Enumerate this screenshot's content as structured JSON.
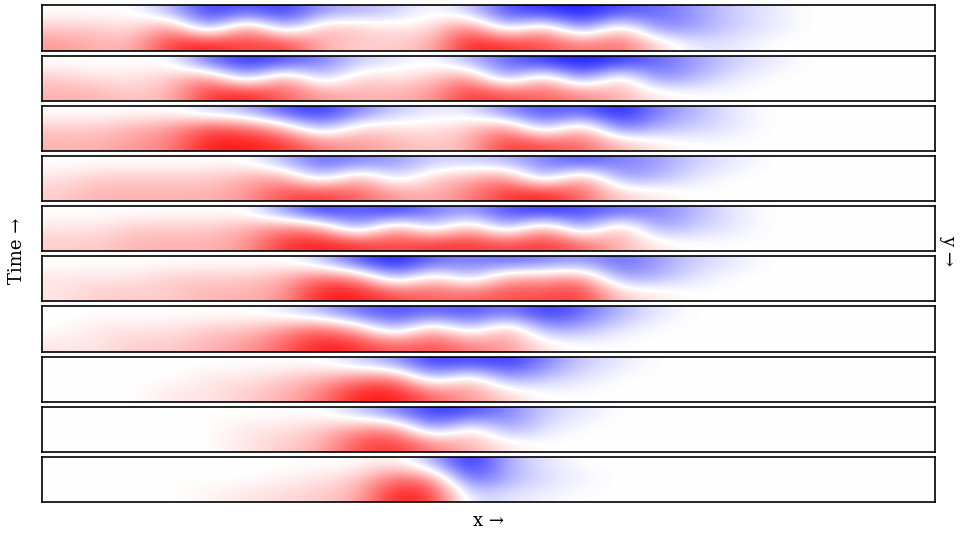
{
  "chart_data": {
    "type": "heatmap",
    "ylabel": "Time →",
    "xlabel": "x →",
    "y2label": "y →",
    "tick_labels": false,
    "value_range": [
      -1,
      1
    ],
    "panels": [
      {
        "cells": [
          [
            0,
            0,
            0,
            -0.3,
            -0.8,
            -0.6,
            -0.8,
            -0.4,
            -0.3,
            -0.2,
            0,
            -0.2,
            -0.7,
            -0.8,
            -0.9,
            -0.7,
            -0.6,
            -0.4,
            -0.2,
            -0.1,
            0,
            0,
            0,
            0
          ],
          [
            0.2,
            0.2,
            0.1,
            0.5,
            -0.5,
            0.6,
            -0.4,
            0.3,
            0.2,
            0.1,
            0.1,
            0.6,
            -0.3,
            0.4,
            -0.6,
            0.3,
            -0.5,
            -0.4,
            -0.2,
            -0.1,
            0,
            0,
            0,
            0
          ],
          [
            0.4,
            0.3,
            0.3,
            0.8,
            0.9,
            0.7,
            0.8,
            0.3,
            0.2,
            0.2,
            0.3,
            0.9,
            0.8,
            0.7,
            0.5,
            0.6,
            0.2,
            -0.1,
            -0.1,
            0,
            0,
            0,
            0,
            0
          ]
        ]
      },
      {
        "cells": [
          [
            0,
            0,
            0,
            0,
            -0.6,
            -0.8,
            -0.7,
            -0.5,
            -0.2,
            -0.1,
            0,
            -0.3,
            -0.6,
            -0.8,
            -0.9,
            -0.8,
            -0.6,
            -0.4,
            -0.2,
            -0.1,
            0,
            0,
            0,
            0
          ],
          [
            0.2,
            0.1,
            0.1,
            0.2,
            0.5,
            -0.4,
            0.5,
            -0.3,
            0.2,
            0.1,
            0.2,
            0.5,
            -0.5,
            0.4,
            -0.6,
            0.3,
            -0.5,
            -0.3,
            -0.1,
            0,
            0,
            0,
            0,
            0
          ],
          [
            0.3,
            0.3,
            0.2,
            0.3,
            0.8,
            0.9,
            0.6,
            0.4,
            0.3,
            0.3,
            0.4,
            0.8,
            0.7,
            0.6,
            0.5,
            0.3,
            0.1,
            0,
            0,
            0,
            0,
            0,
            0,
            0
          ]
        ]
      },
      {
        "cells": [
          [
            0,
            0,
            0,
            0,
            -0.2,
            -0.3,
            -0.7,
            -0.8,
            -0.5,
            -0.2,
            -0.1,
            -0.1,
            -0.5,
            -0.7,
            -0.6,
            -0.9,
            -0.5,
            -0.3,
            -0.1,
            0,
            0,
            0,
            0,
            0
          ],
          [
            0.2,
            0.2,
            0.3,
            0.4,
            0.7,
            0.6,
            0.3,
            -0.4,
            0.2,
            0.1,
            0.1,
            0.2,
            0.5,
            -0.4,
            0.4,
            -0.6,
            -0.3,
            -0.2,
            -0.1,
            0,
            0,
            0,
            0,
            0
          ],
          [
            0.3,
            0.3,
            0.4,
            0.5,
            0.9,
            0.9,
            0.8,
            0.5,
            0.4,
            0.3,
            0.2,
            0.3,
            0.8,
            0.7,
            0.6,
            0.3,
            0.1,
            0,
            0,
            0,
            0,
            0,
            0,
            0
          ]
        ]
      },
      {
        "cells": [
          [
            0,
            0,
            0,
            0,
            0,
            0,
            -0.3,
            -0.6,
            -0.5,
            -0.4,
            -0.2,
            -0.2,
            -0.3,
            -0.5,
            -0.7,
            -0.5,
            -0.4,
            -0.2,
            -0.1,
            0,
            0,
            0,
            0,
            0
          ],
          [
            0.1,
            0.2,
            0.2,
            0.2,
            0.2,
            0.3,
            0.4,
            -0.3,
            0.4,
            -0.2,
            0.2,
            0.3,
            0.5,
            -0.4,
            0.5,
            -0.4,
            -0.3,
            -0.1,
            0,
            0,
            0,
            0,
            0,
            0
          ],
          [
            0.2,
            0.3,
            0.3,
            0.3,
            0.3,
            0.4,
            0.7,
            0.8,
            0.6,
            0.4,
            0.3,
            0.5,
            0.8,
            0.9,
            0.6,
            0.2,
            0.1,
            0,
            0,
            0,
            0,
            0,
            0,
            0
          ]
        ]
      },
      {
        "cells": [
          [
            0,
            0,
            0,
            0,
            0,
            0,
            -0.4,
            -0.8,
            -0.6,
            -0.8,
            -0.5,
            -0.4,
            -0.7,
            -0.8,
            -0.7,
            -0.6,
            -0.5,
            -0.3,
            -0.1,
            0,
            0,
            0,
            0,
            0
          ],
          [
            0.1,
            0.1,
            0.2,
            0.2,
            0.2,
            0.3,
            0.5,
            0.4,
            -0.5,
            0.5,
            -0.3,
            0.4,
            -0.4,
            0.5,
            -0.5,
            0.4,
            -0.4,
            -0.2,
            -0.1,
            0,
            0,
            0,
            0,
            0
          ],
          [
            0.2,
            0.2,
            0.3,
            0.3,
            0.3,
            0.4,
            0.8,
            0.9,
            0.8,
            0.7,
            0.8,
            0.8,
            0.7,
            0.8,
            0.6,
            0.3,
            0.1,
            0,
            0,
            0,
            0,
            0,
            0,
            0
          ]
        ]
      },
      {
        "cells": [
          [
            0,
            0,
            0,
            0,
            0,
            0,
            0,
            -0.2,
            -0.7,
            -0.9,
            -0.6,
            -0.5,
            -0.6,
            -0.5,
            -0.4,
            -0.6,
            -0.4,
            -0.2,
            -0.1,
            0,
            0,
            0,
            0,
            0
          ],
          [
            0.1,
            0.1,
            0.1,
            0.2,
            0.2,
            0.2,
            0.3,
            0.6,
            0.5,
            -0.4,
            0.3,
            -0.3,
            0.4,
            0.3,
            0.5,
            -0.4,
            -0.3,
            -0.1,
            0,
            0,
            0,
            0,
            0,
            0
          ],
          [
            0.1,
            0.2,
            0.2,
            0.2,
            0.3,
            0.3,
            0.4,
            0.9,
            0.9,
            0.7,
            0.6,
            0.6,
            0.7,
            0.7,
            0.8,
            0.2,
            0.1,
            0,
            0,
            0,
            0,
            0,
            0,
            0
          ]
        ]
      },
      {
        "cells": [
          [
            0,
            0,
            0,
            0,
            0,
            0,
            -0.1,
            -0.3,
            -0.6,
            -0.7,
            -0.6,
            -0.7,
            -0.5,
            -0.8,
            -0.6,
            -0.3,
            -0.1,
            0,
            0,
            0,
            0,
            0,
            0,
            0
          ],
          [
            0,
            0.1,
            0.1,
            0.1,
            0.2,
            0.2,
            0.4,
            0.6,
            0.3,
            -0.4,
            0.4,
            -0.3,
            0.4,
            -0.4,
            -0.3,
            -0.1,
            0,
            0,
            0,
            0,
            0,
            0,
            0,
            0
          ],
          [
            0.1,
            0.1,
            0.2,
            0.2,
            0.3,
            0.4,
            0.6,
            0.9,
            0.8,
            0.6,
            0.7,
            0.5,
            0.4,
            0.1,
            0,
            0,
            0,
            0,
            0,
            0,
            0,
            0,
            0,
            0
          ]
        ]
      },
      {
        "cells": [
          [
            0,
            0,
            0,
            0,
            0,
            0,
            0,
            0,
            -0.2,
            -0.4,
            -0.8,
            -0.7,
            -0.8,
            -0.5,
            -0.2,
            -0.1,
            0,
            0,
            0,
            0,
            0,
            0,
            0,
            0
          ],
          [
            0,
            0,
            0,
            0,
            0.1,
            0.1,
            0.2,
            0.3,
            0.5,
            0.6,
            -0.3,
            0.3,
            -0.4,
            -0.2,
            -0.1,
            0,
            0,
            0,
            0,
            0,
            0,
            0,
            0,
            0
          ],
          [
            0,
            0,
            0,
            0.1,
            0.1,
            0.2,
            0.3,
            0.5,
            0.9,
            0.9,
            0.6,
            0.4,
            0.2,
            0,
            0,
            0,
            0,
            0,
            0,
            0,
            0,
            0,
            0,
            0
          ]
        ]
      },
      {
        "cells": [
          [
            0,
            0,
            0,
            0,
            0,
            0,
            0,
            0,
            -0.2,
            -0.5,
            -0.8,
            -0.7,
            -0.5,
            -0.2,
            -0.1,
            0,
            0,
            0,
            0,
            0,
            0,
            0,
            0,
            0
          ],
          [
            0,
            0,
            0,
            0,
            0,
            0.1,
            0.1,
            0.2,
            0.4,
            0.5,
            -0.5,
            0.2,
            -0.4,
            -0.1,
            0,
            0,
            0,
            0,
            0,
            0,
            0,
            0,
            0,
            0
          ],
          [
            0,
            0,
            0,
            0,
            0,
            0.1,
            0.2,
            0.3,
            0.7,
            0.8,
            0.5,
            0.3,
            0.1,
            0,
            0,
            0,
            0,
            0,
            0,
            0,
            0,
            0,
            0,
            0
          ]
        ]
      },
      {
        "cells": [
          [
            0,
            0,
            0,
            0,
            0,
            0,
            0,
            0,
            0,
            0.1,
            -0.3,
            -0.9,
            -0.3,
            -0.1,
            0,
            0,
            0,
            0,
            0,
            0,
            0,
            0,
            0,
            0
          ],
          [
            0,
            0,
            0,
            0,
            0,
            0,
            0.05,
            0.1,
            0.2,
            0.6,
            0.5,
            -0.7,
            -0.3,
            -0.15,
            -0.05,
            0,
            0,
            0,
            0,
            0,
            0,
            0,
            0,
            0
          ],
          [
            0,
            0,
            0,
            0,
            0.05,
            0.1,
            0.15,
            0.2,
            0.3,
            0.9,
            0.8,
            -0.2,
            -0.1,
            -0.05,
            0,
            0,
            0,
            0,
            0,
            0,
            0,
            0,
            0,
            0
          ]
        ]
      }
    ]
  }
}
